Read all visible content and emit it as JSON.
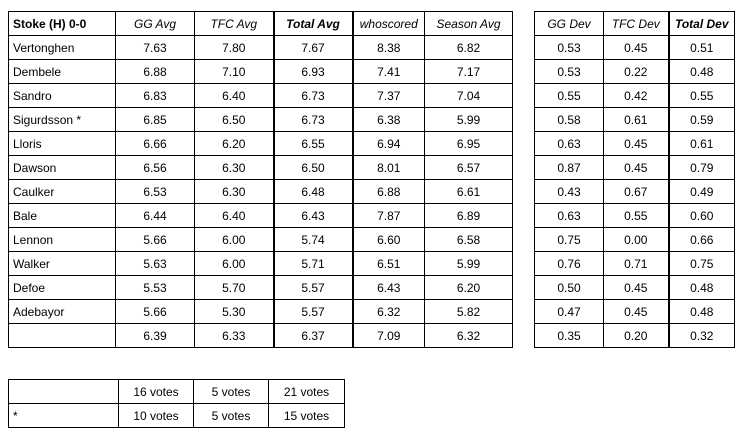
{
  "main_table": {
    "headers": [
      "Stoke (H) 0-0",
      "GG Avg",
      "TFC Avg",
      "Total Avg",
      "whoscored",
      "Season Avg"
    ],
    "rows": [
      [
        "Vertonghen",
        "7.63",
        "7.80",
        "7.67",
        "8.38",
        "6.82"
      ],
      [
        "Dembele",
        "6.88",
        "7.10",
        "6.93",
        "7.41",
        "7.17"
      ],
      [
        "Sandro",
        "6.83",
        "6.40",
        "6.73",
        "7.37",
        "7.04"
      ],
      [
        "Sigurdsson *",
        "6.85",
        "6.50",
        "6.73",
        "6.38",
        "5.99"
      ],
      [
        "Lloris",
        "6.66",
        "6.20",
        "6.55",
        "6.94",
        "6.95"
      ],
      [
        "Dawson",
        "6.56",
        "6.30",
        "6.50",
        "8.01",
        "6.57"
      ],
      [
        "Caulker",
        "6.53",
        "6.30",
        "6.48",
        "6.88",
        "6.61"
      ],
      [
        "Bale",
        "6.44",
        "6.40",
        "6.43",
        "7.87",
        "6.89"
      ],
      [
        "Lennon",
        "5.66",
        "6.00",
        "5.74",
        "6.60",
        "6.58"
      ],
      [
        "Walker",
        "5.63",
        "6.00",
        "5.71",
        "6.51",
        "5.99"
      ],
      [
        "Defoe",
        "5.53",
        "5.70",
        "5.57",
        "6.43",
        "6.20"
      ],
      [
        "Adebayor",
        "5.66",
        "5.30",
        "5.57",
        "6.32",
        "5.82"
      ],
      [
        "",
        "6.39",
        "6.33",
        "6.37",
        "7.09",
        "6.32"
      ]
    ]
  },
  "dev_table": {
    "headers": [
      "GG Dev",
      "TFC Dev",
      "Total Dev"
    ],
    "rows": [
      [
        "0.53",
        "0.45",
        "0.51"
      ],
      [
        "0.53",
        "0.22",
        "0.48"
      ],
      [
        "0.55",
        "0.42",
        "0.55"
      ],
      [
        "0.58",
        "0.61",
        "0.59"
      ],
      [
        "0.63",
        "0.45",
        "0.61"
      ],
      [
        "0.87",
        "0.45",
        "0.79"
      ],
      [
        "0.43",
        "0.67",
        "0.49"
      ],
      [
        "0.63",
        "0.55",
        "0.60"
      ],
      [
        "0.75",
        "0.00",
        "0.66"
      ],
      [
        "0.76",
        "0.71",
        "0.75"
      ],
      [
        "0.50",
        "0.45",
        "0.48"
      ],
      [
        "0.47",
        "0.45",
        "0.48"
      ],
      [
        "0.35",
        "0.20",
        "0.32"
      ]
    ]
  },
  "votes_table": {
    "rows": [
      [
        "",
        "16 votes",
        "5 votes",
        "21 votes"
      ],
      [
        "*",
        "10 votes",
        "5 votes",
        "15 votes"
      ]
    ]
  }
}
